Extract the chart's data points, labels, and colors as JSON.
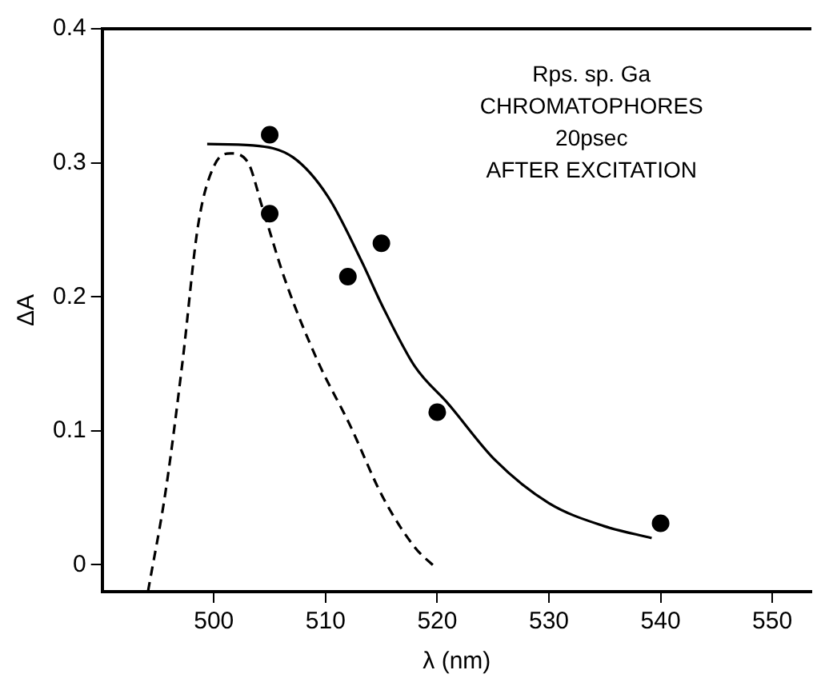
{
  "chart_data": {
    "type": "line",
    "xlabel": "λ (nm)",
    "ylabel": "ΔA",
    "annotations": [
      "Rps. sp. Ga",
      "CHROMATOPHORES",
      "20psec",
      "AFTER EXCITATION"
    ],
    "xlim": [
      490,
      553.5
    ],
    "xticks": [
      500,
      510,
      520,
      530,
      540,
      550
    ],
    "ylim": [
      -0.02,
      0.4
    ],
    "yticks": [
      0,
      0.1,
      0.2,
      0.3,
      0.4
    ],
    "grid": false,
    "legend": false,
    "series": [
      {
        "type": "line",
        "line_style": "dashed",
        "marker": "none",
        "color": "#000000",
        "x": [
          494.1,
          495.7,
          497.2,
          498.6,
          500.1,
          501.5,
          503,
          504.4,
          506.4,
          509.3,
          512.2,
          515.1,
          518,
          520
        ],
        "values": [
          -0.02,
          0.056,
          0.152,
          0.254,
          0.299,
          0.307,
          0.301,
          0.265,
          0.212,
          0.152,
          0.104,
          0.051,
          0.013,
          -0.003
        ]
      },
      {
        "type": "line",
        "line_style": "solid",
        "marker": "none",
        "color": "#000000",
        "x": [
          499.4,
          503.5,
          507.1,
          510.2,
          513.2,
          515.1,
          518,
          521,
          525.2,
          530,
          534.9,
          539.2
        ],
        "values": [
          0.314,
          0.313,
          0.304,
          0.275,
          0.227,
          0.193,
          0.148,
          0.12,
          0.078,
          0.046,
          0.029,
          0.02
        ]
      },
      {
        "type": "scatter",
        "marker": "circle",
        "color": "#000000",
        "x": [
          505,
          505,
          512,
          515,
          520,
          540
        ],
        "values": [
          0.321,
          0.262,
          0.215,
          0.24,
          0.114,
          0.031
        ]
      }
    ]
  }
}
